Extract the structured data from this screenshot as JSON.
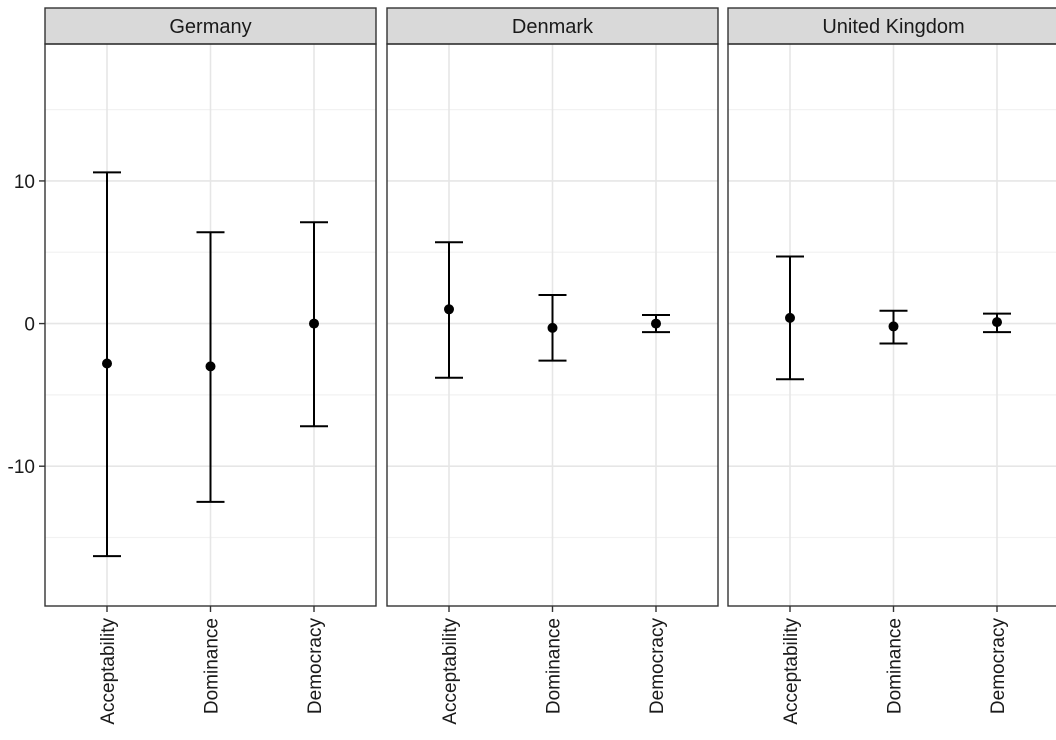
{
  "chart_data": {
    "type": "errorbar",
    "facets": [
      "Germany",
      "Denmark",
      "United Kingdom"
    ],
    "categories": [
      "Acceptability",
      "Dominance",
      "Democracy"
    ],
    "y_ticks": [
      -10,
      0,
      10
    ],
    "y_tick_labels": [
      "-10",
      "0",
      "10"
    ],
    "ylim": [
      -19.8,
      19.6
    ],
    "grid": true,
    "panels": [
      {
        "facet": "Germany",
        "points": [
          {
            "category": "Acceptability",
            "estimate": -2.8,
            "low": -16.3,
            "high": 10.6
          },
          {
            "category": "Dominance",
            "estimate": -3.0,
            "low": -12.5,
            "high": 6.4
          },
          {
            "category": "Democracy",
            "estimate": 0.0,
            "low": -7.2,
            "high": 7.1
          }
        ]
      },
      {
        "facet": "Denmark",
        "points": [
          {
            "category": "Acceptability",
            "estimate": 1.0,
            "low": -3.8,
            "high": 5.7
          },
          {
            "category": "Dominance",
            "estimate": -0.3,
            "low": -2.6,
            "high": 2.0
          },
          {
            "category": "Democracy",
            "estimate": 0.0,
            "low": -0.6,
            "high": 0.6
          }
        ]
      },
      {
        "facet": "United Kingdom",
        "points": [
          {
            "category": "Acceptability",
            "estimate": 0.4,
            "low": -3.9,
            "high": 4.7
          },
          {
            "category": "Dominance",
            "estimate": -0.2,
            "low": -1.4,
            "high": 0.9
          },
          {
            "category": "Democracy",
            "estimate": 0.1,
            "low": -0.6,
            "high": 0.7
          }
        ]
      }
    ],
    "colors": {
      "strip_fill": "#d9d9d9",
      "panel_border": "#333333",
      "grid_major": "#e6e6e6",
      "grid_minor": "#f2f2f2",
      "marks": "#000000",
      "text": "#1a1a1a"
    }
  }
}
